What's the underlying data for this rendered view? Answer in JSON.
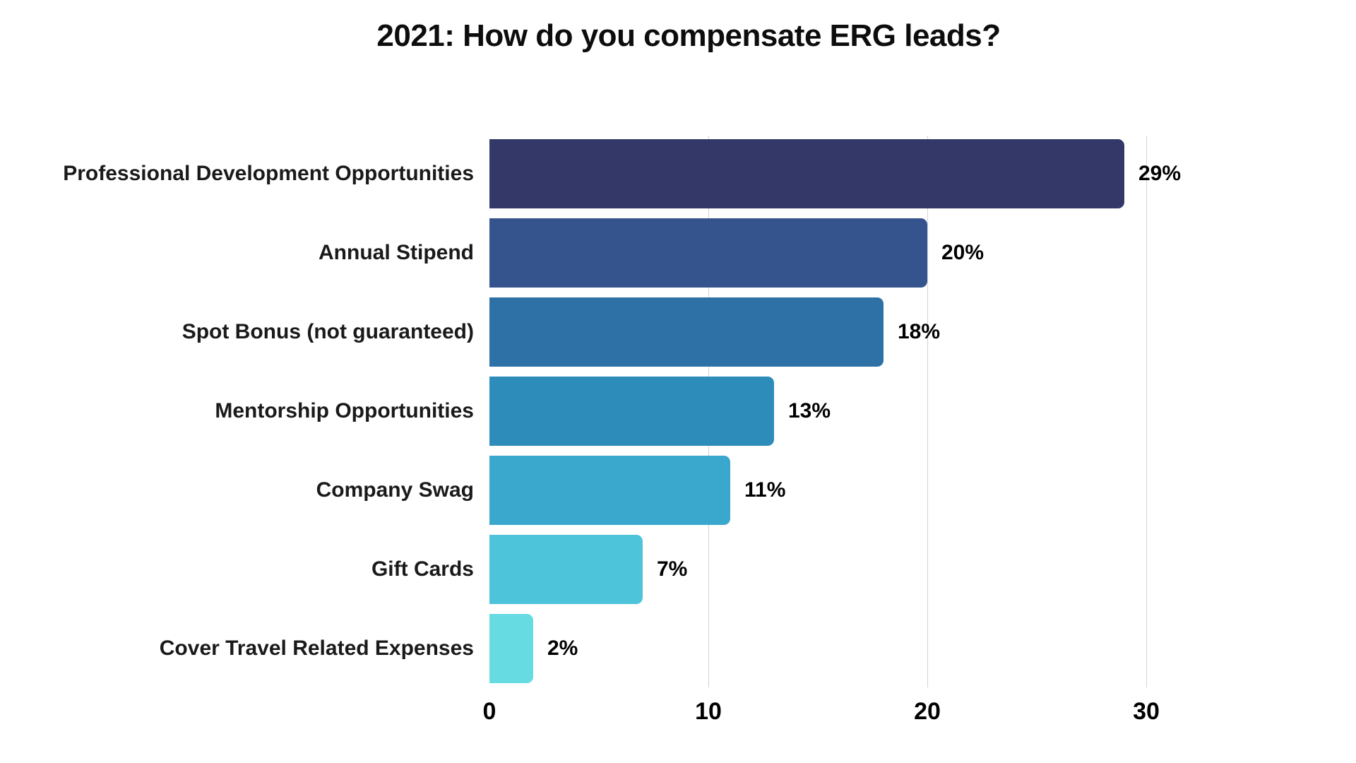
{
  "chart_data": {
    "type": "bar",
    "orientation": "horizontal",
    "title": "2021: How do you compensate ERG leads?",
    "categories": [
      "Professional Development Opportunities",
      "Annual Stipend",
      "Spot Bonus (not guaranteed)",
      "Mentorship Opportunities",
      "Company Swag",
      "Gift Cards",
      "Cover Travel Related Expenses"
    ],
    "values": [
      29,
      20,
      18,
      13,
      11,
      7,
      2
    ],
    "value_labels": [
      "29%",
      "20%",
      "18%",
      "13%",
      "11%",
      "7%",
      "2%"
    ],
    "bar_colors": [
      "#343869",
      "#35548E",
      "#2E71A6",
      "#2D8CBA",
      "#3AA8CC",
      "#4EC4DB",
      "#66DCE2"
    ],
    "xlabel": "",
    "ylabel": "",
    "xlim": [
      0,
      35
    ],
    "x_ticks": [
      0,
      10,
      20,
      30
    ],
    "grid": "vertical-only",
    "gridline_color": "#d3d3d3",
    "legend": "none",
    "background_color": "#ffffff",
    "text_color": "#000000"
  }
}
